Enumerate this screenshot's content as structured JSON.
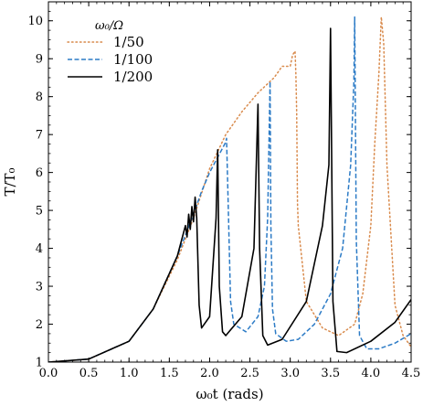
{
  "chart_data": {
    "type": "line",
    "xlabel": "ω₀t (rads)",
    "ylabel": "T/T₀",
    "xlim": [
      0,
      4.5
    ],
    "ylim": [
      1,
      10.5
    ],
    "x_ticks": [
      0.0,
      0.5,
      1.0,
      1.5,
      2.0,
      2.5,
      3.0,
      3.5,
      4.0,
      4.5
    ],
    "x_tick_labels": [
      "0.0",
      "0.5",
      "1.0",
      "1.5",
      "2.0",
      "2.5",
      "3.0",
      "3.5",
      "4.0",
      "4.5"
    ],
    "y_ticks": [
      1,
      2,
      3,
      4,
      5,
      6,
      7,
      8,
      9,
      10
    ],
    "y_tick_labels": [
      "1",
      "2",
      "3",
      "4",
      "5",
      "6",
      "7",
      "8",
      "9",
      "10"
    ],
    "legend": {
      "title": "ω₀/Ω",
      "placement": "top-left"
    },
    "series": [
      {
        "name": "1/50",
        "color": "#d98b4d",
        "style": "dotted",
        "x": [
          0.0,
          0.5,
          1.0,
          1.3,
          1.6,
          1.8,
          2.0,
          2.2,
          2.4,
          2.6,
          2.8,
          2.9,
          3.0,
          3.03,
          3.06,
          3.07,
          3.08,
          3.09,
          3.1,
          3.2,
          3.4,
          3.6,
          3.8,
          3.9,
          4.0,
          4.05,
          4.1,
          4.13,
          4.16,
          4.2,
          4.3,
          4.4,
          4.5
        ],
        "y": [
          1.0,
          1.08,
          1.55,
          2.4,
          3.7,
          4.8,
          6.1,
          7.0,
          7.6,
          8.1,
          8.5,
          8.8,
          8.8,
          9.1,
          9.2,
          8.6,
          7.6,
          5.2,
          4.6,
          2.6,
          1.9,
          1.7,
          2.0,
          2.8,
          4.6,
          6.8,
          8.6,
          10.1,
          9.4,
          6.2,
          2.5,
          1.7,
          1.4
        ]
      },
      {
        "name": "1/100",
        "color": "#2c7bc6",
        "style": "dashed",
        "x": [
          0.0,
          0.5,
          1.0,
          1.3,
          1.6,
          1.8,
          1.9,
          2.0,
          2.1,
          2.2,
          2.21,
          2.23,
          2.26,
          2.3,
          2.45,
          2.6,
          2.68,
          2.72,
          2.75,
          2.76,
          2.78,
          2.82,
          2.95,
          3.1,
          3.3,
          3.5,
          3.65,
          3.75,
          3.79,
          3.8,
          3.82,
          3.86,
          3.95,
          4.1,
          4.3,
          4.5
        ],
        "y": [
          1.0,
          1.08,
          1.55,
          2.4,
          3.8,
          4.9,
          5.5,
          6.0,
          6.4,
          6.8,
          6.9,
          5.2,
          2.6,
          2.0,
          1.8,
          2.2,
          3.0,
          4.8,
          8.4,
          4.6,
          2.4,
          1.75,
          1.55,
          1.6,
          2.0,
          2.8,
          4.0,
          6.2,
          8.4,
          10.1,
          4.2,
          1.7,
          1.35,
          1.35,
          1.5,
          1.75
        ]
      },
      {
        "name": "1/200",
        "color": "#000000",
        "style": "solid",
        "x": [
          0.0,
          0.5,
          1.0,
          1.3,
          1.6,
          1.7,
          1.72,
          1.74,
          1.76,
          1.78,
          1.8,
          1.82,
          1.84,
          1.87,
          1.9,
          2.0,
          2.08,
          2.1,
          2.12,
          2.16,
          2.2,
          2.4,
          2.55,
          2.6,
          2.62,
          2.66,
          2.72,
          2.9,
          3.2,
          3.4,
          3.48,
          3.5,
          3.53,
          3.58,
          3.7,
          4.0,
          4.3,
          4.5
        ],
        "y": [
          1.0,
          1.08,
          1.55,
          2.4,
          3.8,
          4.6,
          4.3,
          4.9,
          4.5,
          5.1,
          4.7,
          5.35,
          4.8,
          2.5,
          1.9,
          2.2,
          4.8,
          6.6,
          3.0,
          1.8,
          1.7,
          2.2,
          4.0,
          7.8,
          4.0,
          1.7,
          1.45,
          1.6,
          2.6,
          4.6,
          6.2,
          9.8,
          2.6,
          1.28,
          1.25,
          1.55,
          2.05,
          2.65
        ]
      }
    ]
  }
}
